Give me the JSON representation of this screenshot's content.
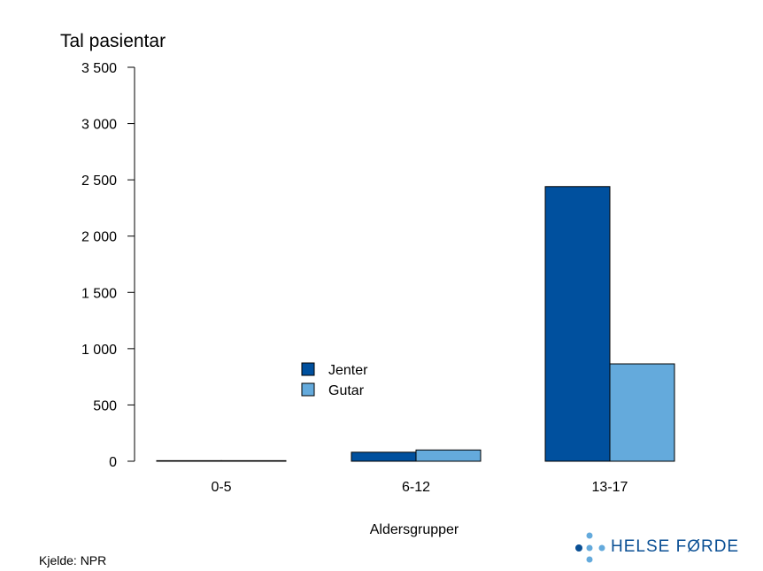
{
  "chart_data": {
    "type": "bar",
    "title": "Tal pasientar",
    "xlabel": "Aldersgrupper",
    "ylabel": "",
    "categories": [
      "0-5",
      "6-12",
      "13-17"
    ],
    "series": [
      {
        "name": "Jenter",
        "color": "#00509e",
        "values": [
          5,
          80,
          2440
        ]
      },
      {
        "name": "Gutar",
        "color": "#64aadc",
        "values": [
          5,
          100,
          865
        ]
      }
    ],
    "ylim": [
      0,
      3500
    ],
    "yticks": [
      0,
      500,
      1000,
      1500,
      2000,
      2500,
      3000,
      3500
    ],
    "ytick_labels": [
      "0",
      "500",
      "1 000",
      "1 500",
      "2 000",
      "2 500",
      "3 000",
      "3 500"
    ],
    "legend_position": "center",
    "grid": false
  },
  "source": "Kjelde: NPR",
  "logo": {
    "text": "HELSE FØRDE",
    "icon": "helse-forde-dots-icon",
    "dot_colors": [
      "#0a4f94",
      "#64aadc"
    ]
  }
}
